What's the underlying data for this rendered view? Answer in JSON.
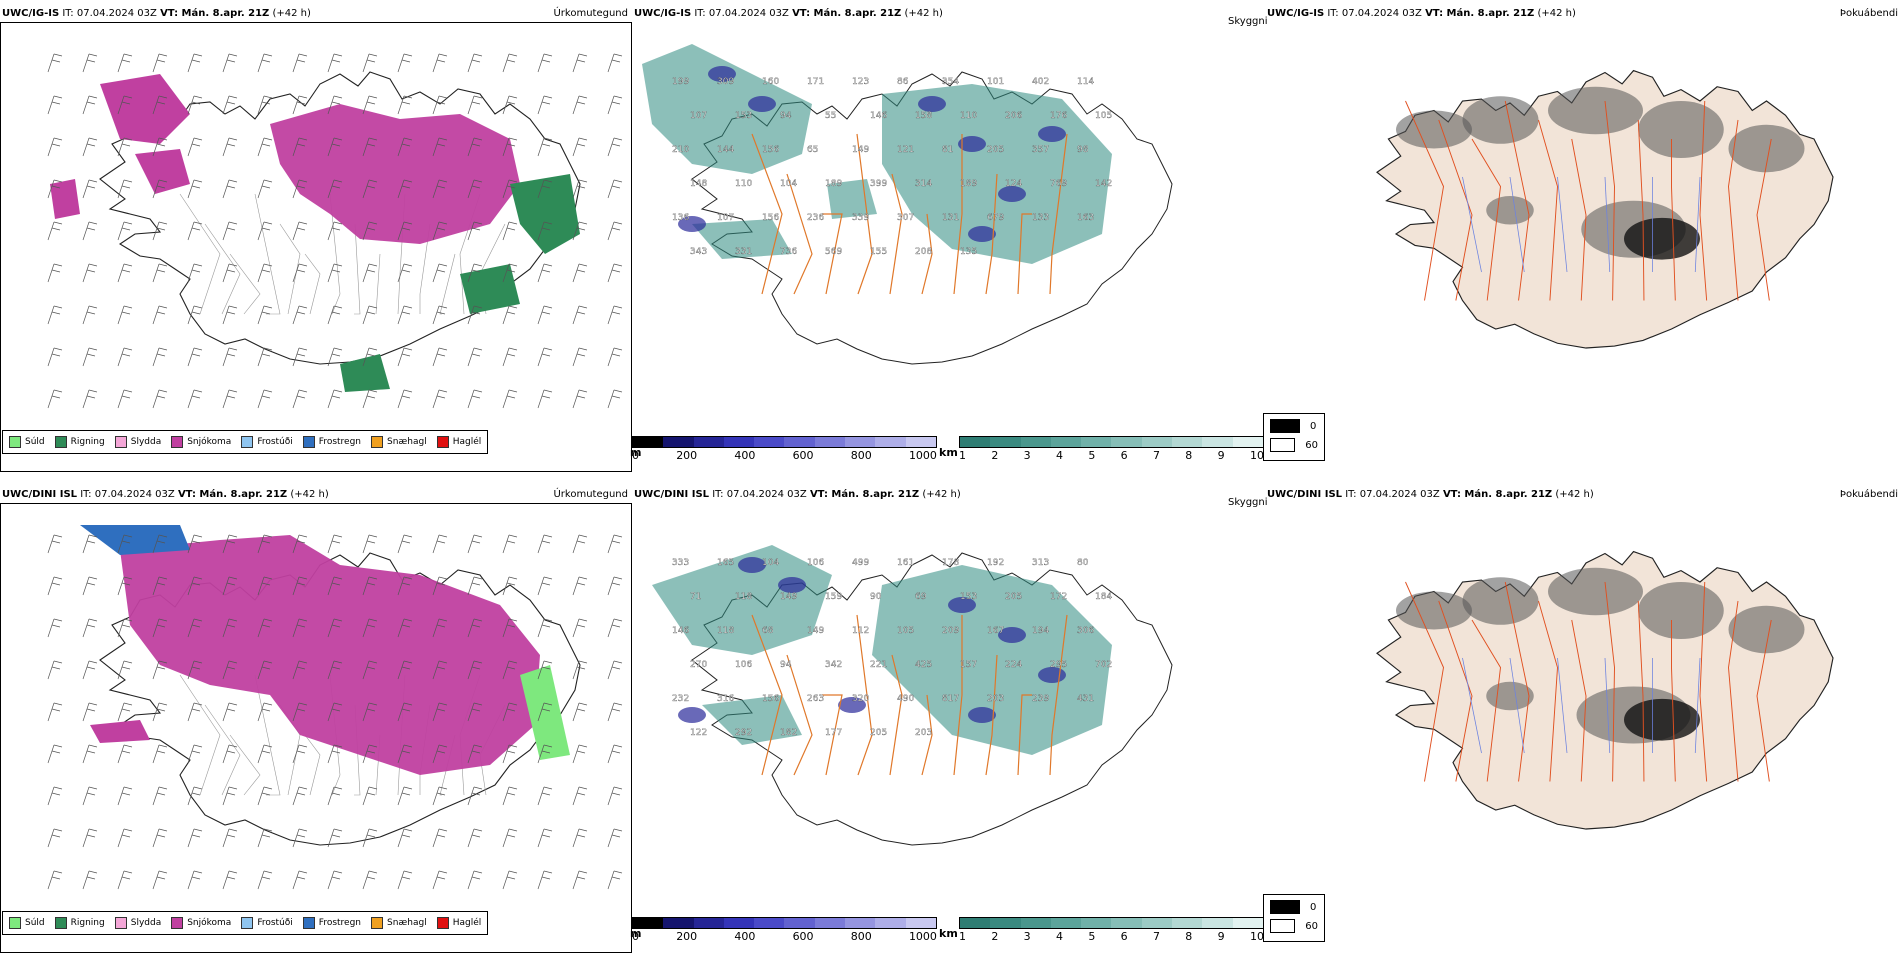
{
  "panels": {
    "top": {
      "left": {
        "model": "UWC/IG-IS",
        "it": "IT: 07.04.2024 03Z",
        "vt_label": "VT: Mán. 8.apr. 21Z",
        "lead": "(+42 h)",
        "corner": "Úrkomutegund"
      },
      "mid": {
        "model": "UWC/IG-IS",
        "it": "IT: 07.04.2024 03Z",
        "vt_label": "VT: Mán. 8.apr. 21Z",
        "lead": "(+42 h)",
        "corner": "Skyggni"
      },
      "right": {
        "model": "UWC/IG-IS",
        "it": "IT: 07.04.2024 03Z",
        "vt_label": "VT: Mán. 8.apr. 21Z",
        "lead": "(+42 h)",
        "corner": "Þokuábendi"
      }
    },
    "bottom": {
      "left": {
        "model": "UWC/DINI ISL",
        "it": "IT: 07.04.2024 03Z",
        "vt_label": "VT: Mán. 8.apr. 21Z",
        "lead": "(+42 h)",
        "corner": "Úrkomutegund"
      },
      "mid": {
        "model": "UWC/DINI ISL",
        "it": "IT: 07.04.2024 03Z",
        "vt_label": "VT: Mán. 8.apr. 21Z",
        "lead": "(+42 h)",
        "corner": "Skyggni"
      },
      "right": {
        "model": "UWC/DINI ISL",
        "it": "IT: 07.04.2024 03Z",
        "vt_label": "VT: Mán. 8.apr. 21Z",
        "lead": "(+42 h)",
        "corner": "Þokuábendi"
      }
    }
  },
  "precip_legend": [
    {
      "label": "Súld",
      "color": "#7ee87e"
    },
    {
      "label": "Rigning",
      "color": "#2e8b57"
    },
    {
      "label": "Slydda",
      "color": "#f4a6d7"
    },
    {
      "label": "Snjókoma",
      "color": "#c040a0"
    },
    {
      "label": "Frostúði",
      "color": "#8fc5f0"
    },
    {
      "label": "Frostregn",
      "color": "#2f6fbf"
    },
    {
      "label": "Snæhagl",
      "color": "#f0a020"
    },
    {
      "label": "Haglél",
      "color": "#e01010"
    }
  ],
  "vis_scale": {
    "m_unit": "m",
    "m_ticks": [
      "0",
      "200",
      "400",
      "600",
      "800",
      "1000"
    ],
    "km_unit": "km",
    "km_ticks": [
      "1",
      "2",
      "3",
      "4",
      "5",
      "6",
      "7",
      "8",
      "9",
      "10"
    ]
  },
  "fog_legend": {
    "low": "0",
    "high": "60"
  },
  "vis_labels_top": [
    "199",
    "309",
    "160",
    "171",
    "123",
    "86",
    "354",
    "101",
    "402",
    "114",
    "107",
    "153",
    "94",
    "55",
    "146",
    "158",
    "110",
    "206",
    "176",
    "105",
    "210",
    "144",
    "156",
    "65",
    "149",
    "121",
    "81",
    "205",
    "357",
    "98",
    "148",
    "110",
    "104",
    "189",
    "399",
    "314",
    "189",
    "124",
    "769",
    "142",
    "136",
    "107",
    "156",
    "236",
    "339",
    "307",
    "131",
    "679",
    "133",
    "163",
    "343",
    "331",
    "736",
    "569",
    "155",
    "208",
    "135"
  ],
  "vis_labels_bottom": [
    "333",
    "165",
    "104",
    "106",
    "499",
    "161",
    "178",
    "192",
    "313",
    "80",
    "71",
    "118",
    "149",
    "159",
    "90",
    "69",
    "153",
    "205",
    "172",
    "184",
    "146",
    "118",
    "68",
    "149",
    "112",
    "105",
    "209",
    "167",
    "194",
    "306",
    "270",
    "106",
    "94",
    "342",
    "221",
    "425",
    "157",
    "224",
    "295",
    "702",
    "232",
    "316",
    "156",
    "263",
    "320",
    "490",
    "817",
    "203",
    "239",
    "431",
    "122",
    "292",
    "182",
    "177",
    "205",
    "203"
  ],
  "colors": {
    "snow": "#c040a0",
    "rain": "#2e8b57",
    "vis_teal": "#2e8b80",
    "roads": "#e0782a",
    "fog_land": "#f2e4d8"
  }
}
